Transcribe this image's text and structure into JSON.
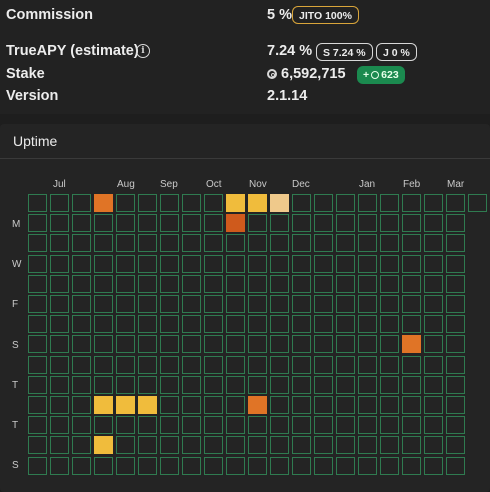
{
  "stats": {
    "commission_label": "Commission",
    "commission_value": "5 %",
    "jito_badge": "JITO 100%",
    "trueapy_label": "TrueAPY (estimate)",
    "trueapy_value": "7.24 %",
    "apy_badge_s": "S 7.24 %",
    "apy_badge_j": "J 0 %",
    "stake_label": "Stake",
    "stake_value": "6,592,715",
    "stake_change_prefix": "+",
    "stake_change": "623",
    "version_label": "Version",
    "version_value": "2.1.14"
  },
  "uptime": {
    "title": "Uptime",
    "months": [
      "Jul",
      "Aug",
      "Sep",
      "Oct",
      "Nov",
      "Dec",
      "Jan",
      "Feb",
      "Mar"
    ],
    "day_labels": [
      "M",
      "W",
      "F",
      "S",
      "T",
      "T",
      "S"
    ],
    "colors": {
      "ok_border": "#2f7b50",
      "yellow": "#f0bc3c",
      "light": "#efc98b",
      "orange": "#e07426",
      "dark_orange": "#cf5a1c"
    },
    "highlight_cells": [
      {
        "week": 3,
        "day": 0,
        "level": "orange"
      },
      {
        "week": 9,
        "day": 0,
        "level": "yellow"
      },
      {
        "week": 10,
        "day": 0,
        "level": "yellow"
      },
      {
        "week": 11,
        "day": 0,
        "level": "light"
      },
      {
        "week": 9,
        "day": 1,
        "level": "dark_orange"
      },
      {
        "week": 17,
        "day": 7,
        "level": "orange"
      },
      {
        "week": 3,
        "day": 10,
        "level": "yellow"
      },
      {
        "week": 4,
        "day": 10,
        "level": "yellow"
      },
      {
        "week": 5,
        "day": 10,
        "level": "yellow"
      },
      {
        "week": 10,
        "day": 10,
        "level": "orange"
      },
      {
        "week": 3,
        "day": 12,
        "level": "yellow"
      }
    ]
  }
}
